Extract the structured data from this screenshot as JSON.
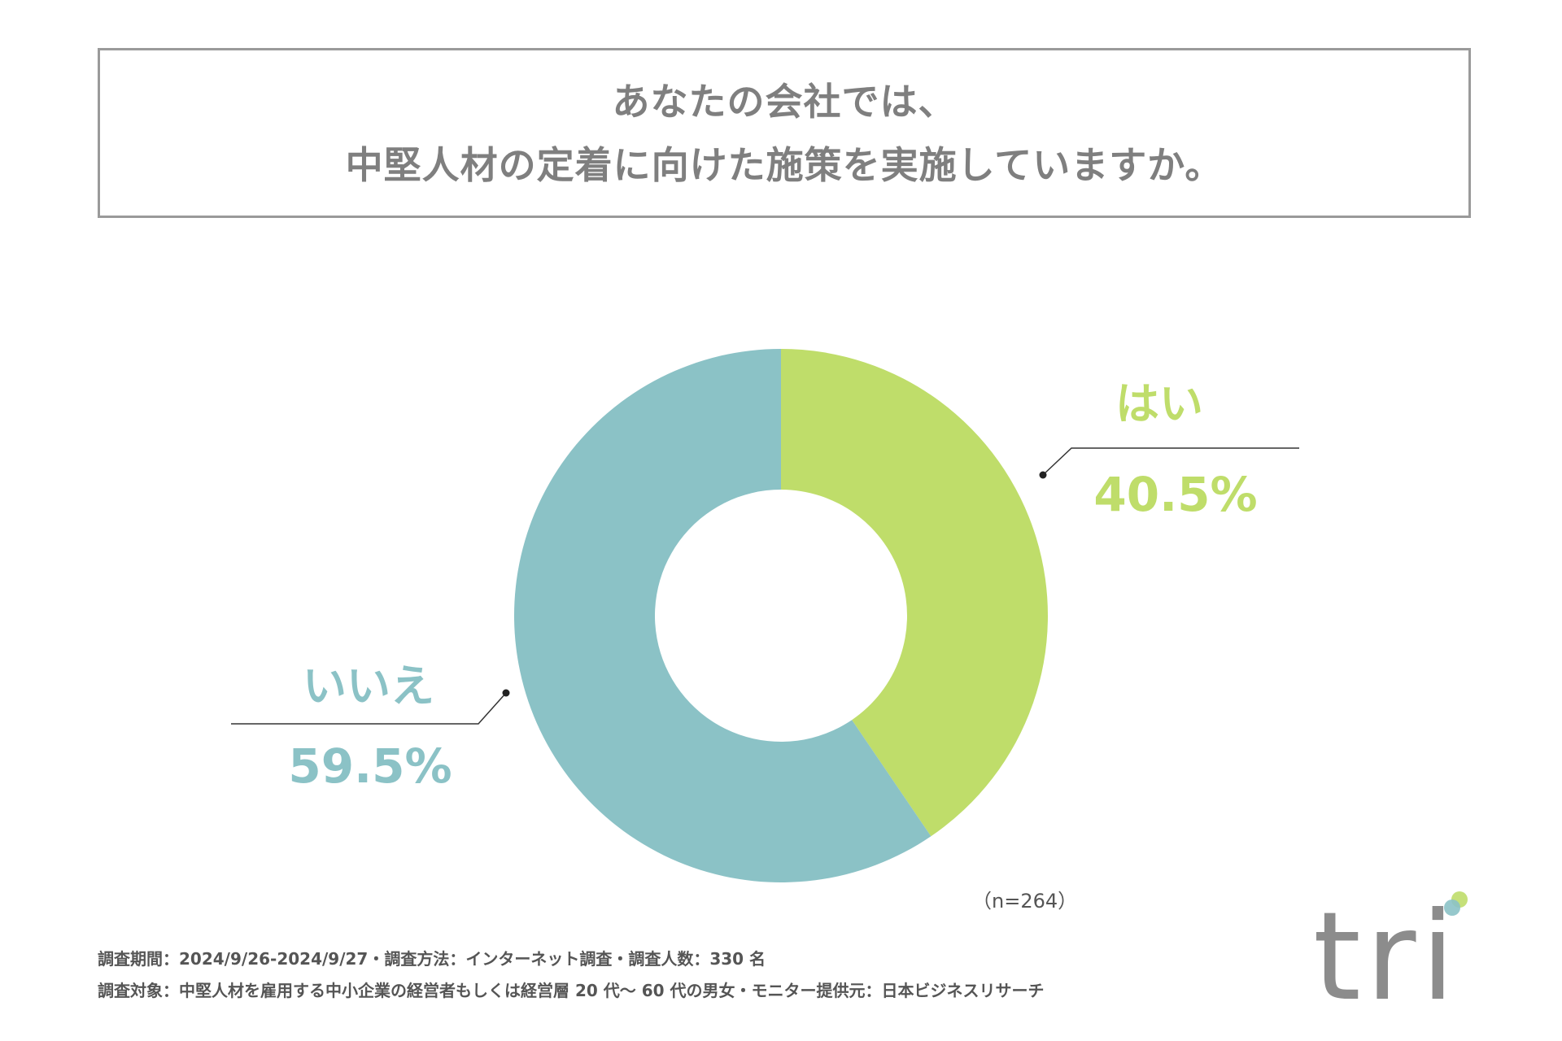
{
  "title": {
    "line1": "あなたの会社では、",
    "line2": "中堅人材の定着に向けた施策を実施していますか。"
  },
  "chart_data": {
    "type": "pie",
    "variant": "donut",
    "slices": [
      {
        "label": "はい",
        "value": 40.5,
        "value_label": "40.5%",
        "color": "#bfdd6a"
      },
      {
        "label": "いいえ",
        "value": 59.5,
        "value_label": "59.5%",
        "color": "#8bc2c6"
      }
    ],
    "sample_size": "（n=264）"
  },
  "footer": {
    "line1": "調査期間：2024/9/26-2024/9/27・調査方法：インターネット調査・調査人数：330 名",
    "line2": "調査対象：中堅人材を雇用する中小企業の経営者もしくは経営層 20 代〜 60 代の男女・モニター提供元：日本ビジネスリサーチ"
  },
  "logo": {
    "text": "tri",
    "colors": {
      "text": "#8c8c8c",
      "dot_green": "#bfdd6a",
      "dot_teal": "#8bc2c6"
    }
  }
}
